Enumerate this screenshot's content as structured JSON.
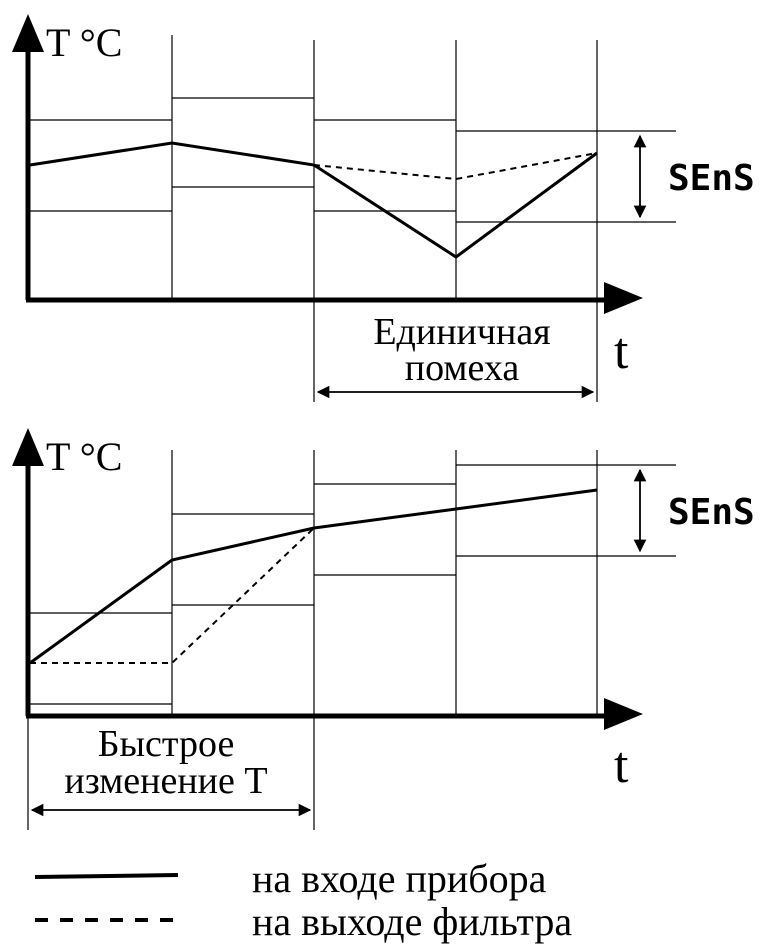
{
  "colors": {
    "ink": "#000000",
    "background": "#ffffff"
  },
  "top_diagram": {
    "axis_y_label": "T °C",
    "axis_x_label": "t",
    "band_label": "SEnS",
    "span_caption_line1": "Единичная",
    "span_caption_line2": "помеха"
  },
  "bottom_diagram": {
    "axis_y_label": "T °C",
    "axis_x_label": "t",
    "band_label": "SEnS",
    "span_caption_line1": "Быстрое",
    "span_caption_line2": "изменение Т"
  },
  "legend": {
    "solid_label": "на входе прибора",
    "dashed_label": "на выходе фильтра"
  }
}
